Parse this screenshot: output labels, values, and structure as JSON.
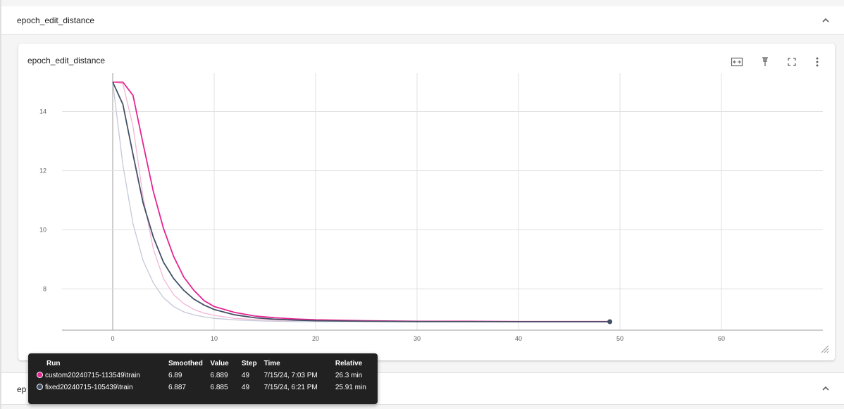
{
  "sections": {
    "top": {
      "title": "epoch_edit_distance"
    },
    "bottom": {
      "title": "ep"
    }
  },
  "card": {
    "title": "epoch_edit_distance",
    "toolbar": [
      "fit-domain-icon",
      "pin-icon",
      "fullscreen-icon",
      "more-vert-icon"
    ]
  },
  "tooltip": {
    "headers": {
      "run": "Run",
      "smoothed": "Smoothed",
      "value": "Value",
      "step": "Step",
      "time": "Time",
      "relative": "Relative"
    },
    "rows": [
      {
        "color": "#e52592",
        "run": "custom20240715-113549\\train",
        "smoothed": "6.89",
        "value": "6.889",
        "step": "49",
        "time": "7/15/24, 7:03 PM",
        "relative": "26.3 min"
      },
      {
        "color": "#425066",
        "run": "fixed20240715-105439\\train",
        "smoothed": "6.887",
        "value": "6.885",
        "step": "49",
        "time": "7/15/24, 6:21 PM",
        "relative": "25.91 min"
      }
    ]
  },
  "chart_data": {
    "type": "line",
    "title": "epoch_edit_distance",
    "xlabel": "",
    "ylabel": "",
    "xlim": [
      -5,
      70
    ],
    "ylim": [
      6.6,
      15.3
    ],
    "x_ticks": [
      0,
      10,
      20,
      30,
      40,
      50,
      60
    ],
    "y_ticks": [
      8,
      10,
      12,
      14
    ],
    "grid": true,
    "legend": "none",
    "series": [
      {
        "name": "custom20240715-113549\\train",
        "color": "#e52592",
        "raw_color": "#f4b6d6",
        "x": [
          0,
          1,
          2,
          3,
          4,
          5,
          6,
          7,
          8,
          9,
          10,
          12,
          14,
          16,
          18,
          20,
          25,
          30,
          35,
          40,
          45,
          49
        ],
        "smoothed": [
          15.0,
          15.0,
          14.55,
          12.9,
          11.3,
          10.05,
          9.1,
          8.4,
          7.95,
          7.6,
          7.4,
          7.2,
          7.08,
          7.02,
          6.98,
          6.95,
          6.92,
          6.9,
          6.9,
          6.89,
          6.89,
          6.89
        ],
        "raw": [
          15.0,
          14.95,
          13.5,
          11.1,
          9.35,
          8.35,
          7.8,
          7.5,
          7.3,
          7.18,
          7.1,
          7.0,
          6.96,
          6.94,
          6.93,
          6.92,
          6.9,
          6.89,
          6.89,
          6.89,
          6.889,
          6.889
        ]
      },
      {
        "name": "fixed20240715-105439\\train",
        "color": "#425066",
        "raw_color": "#c4c9d8",
        "x": [
          0,
          1,
          2,
          3,
          4,
          5,
          6,
          7,
          8,
          9,
          10,
          12,
          14,
          16,
          18,
          20,
          25,
          30,
          35,
          40,
          45,
          49
        ],
        "smoothed": [
          15.0,
          14.25,
          12.55,
          10.9,
          9.75,
          8.9,
          8.35,
          7.95,
          7.65,
          7.45,
          7.3,
          7.12,
          7.02,
          6.97,
          6.94,
          6.92,
          6.9,
          6.89,
          6.888,
          6.887,
          6.887,
          6.887
        ],
        "raw": [
          15.0,
          12.2,
          10.2,
          8.95,
          8.2,
          7.7,
          7.4,
          7.22,
          7.12,
          7.05,
          7.0,
          6.95,
          6.92,
          6.9,
          6.89,
          6.89,
          6.888,
          6.886,
          6.886,
          6.885,
          6.885,
          6.885
        ]
      }
    ]
  }
}
